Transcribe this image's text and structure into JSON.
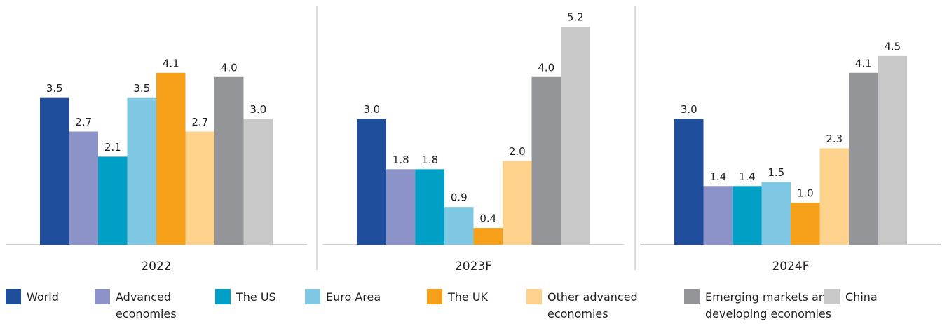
{
  "chart_data": {
    "type": "bar",
    "categories": [
      "2022",
      "2023F",
      "2024F"
    ],
    "series": [
      {
        "name": "World",
        "color": "#1f4e9c",
        "values": [
          3.5,
          3.0,
          3.0
        ],
        "value_labels": [
          "3.5",
          "3.0",
          "3.0"
        ]
      },
      {
        "name": "Advanced economies",
        "color": "#8b93c8",
        "values": [
          2.7,
          1.8,
          1.4
        ],
        "value_labels": [
          "2.7",
          "1.8",
          "1.4"
        ]
      },
      {
        "name": "The US",
        "color": "#00a0c6",
        "values": [
          2.1,
          1.8,
          1.4
        ],
        "value_labels": [
          "2.1",
          "1.8",
          "1.4"
        ]
      },
      {
        "name": "Euro Area",
        "color": "#7ec8e3",
        "values": [
          3.5,
          0.9,
          1.5
        ],
        "value_labels": [
          "3.5",
          "0.9",
          "1.5"
        ]
      },
      {
        "name": "The UK",
        "color": "#f6a01a",
        "values": [
          4.1,
          0.4,
          1.0
        ],
        "value_labels": [
          "4.1",
          "0.4",
          "1.0"
        ]
      },
      {
        "name": "Other advanced economies",
        "color": "#fdd28c",
        "values": [
          2.7,
          2.0,
          2.3
        ],
        "value_labels": [
          "2.7",
          "2.0",
          "2.3"
        ]
      },
      {
        "name": "Emerging markets and developing economies",
        "color": "#939598",
        "values": [
          4.0,
          4.0,
          4.1
        ],
        "value_labels": [
          "4.0",
          "4.0",
          "4.1"
        ]
      },
      {
        "name": "China",
        "color": "#c8c8c8",
        "values": [
          3.0,
          5.2,
          4.5
        ],
        "value_labels": [
          "3.0",
          "5.2",
          "4.5"
        ]
      }
    ],
    "ylim": [
      0,
      5.2
    ]
  }
}
